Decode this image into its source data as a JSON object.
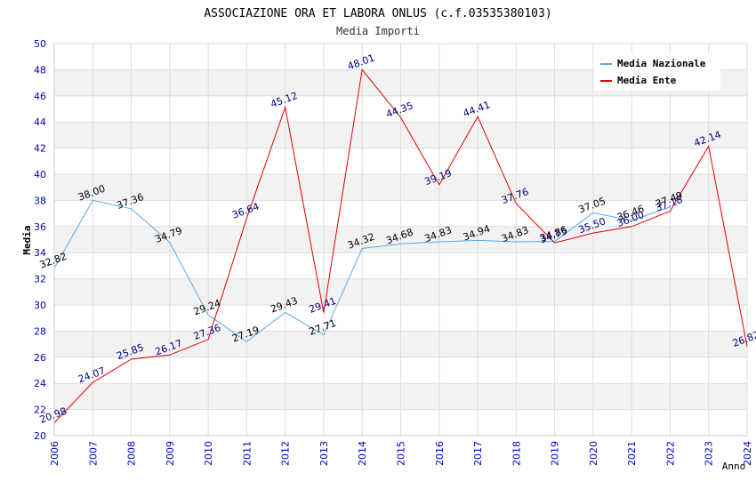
{
  "chart_data": {
    "type": "line",
    "title": "ASSOCIAZIONE ORA ET LABORA ONLUS (c.f.03535380103)",
    "subtitle": "Media Importi",
    "xlabel": "Anno",
    "ylabel": "Media",
    "ylim": [
      20,
      50
    ],
    "yticks": [
      "20",
      "22",
      "24",
      "26",
      "28",
      "30",
      "32",
      "34",
      "36",
      "38",
      "40",
      "42",
      "44",
      "46",
      "48",
      "50"
    ],
    "legend_position": "top-right",
    "categories": [
      "2006",
      "2007",
      "2008",
      "2009",
      "2010",
      "2011",
      "2012",
      "2013",
      "2014",
      "2015",
      "2016",
      "2017",
      "2018",
      "2019",
      "2020",
      "2021",
      "2022",
      "2023",
      "2024"
    ],
    "series": [
      {
        "name": "Media Nazionale",
        "color": "#5aaae6",
        "label_color": "#000000",
        "values": [
          32.82,
          38.0,
          37.36,
          34.79,
          29.24,
          27.19,
          29.43,
          27.71,
          34.32,
          34.68,
          34.83,
          34.94,
          34.83,
          34.86,
          37.05,
          36.46,
          37.49,
          null,
          null
        ],
        "labels": [
          "32.82",
          "38.00",
          "37.36",
          "34.79",
          "29.24",
          "27.19",
          "29.43",
          "27.71",
          "34.32",
          "34.68",
          "34.83",
          "34.94",
          "34.83",
          "34.86",
          "37.05",
          "36.46",
          "37.49",
          "",
          ""
        ]
      },
      {
        "name": "Media Ente",
        "color": "#e00000",
        "label_color": "#000080",
        "values": [
          20.98,
          24.07,
          25.85,
          26.17,
          27.36,
          36.64,
          45.12,
          29.41,
          48.01,
          44.35,
          39.19,
          44.41,
          37.76,
          34.75,
          35.5,
          36.0,
          37.18,
          42.14,
          26.82
        ],
        "labels": [
          "20.98",
          "24.07",
          "25.85",
          "26.17",
          "27.36",
          "36.64",
          "45.12",
          "29.41",
          "48.01",
          "44.35",
          "39.19",
          "44.41",
          "37.76",
          "34.75",
          "35.50",
          "36.00",
          "37.18",
          "42.14",
          "26.82"
        ]
      }
    ]
  }
}
